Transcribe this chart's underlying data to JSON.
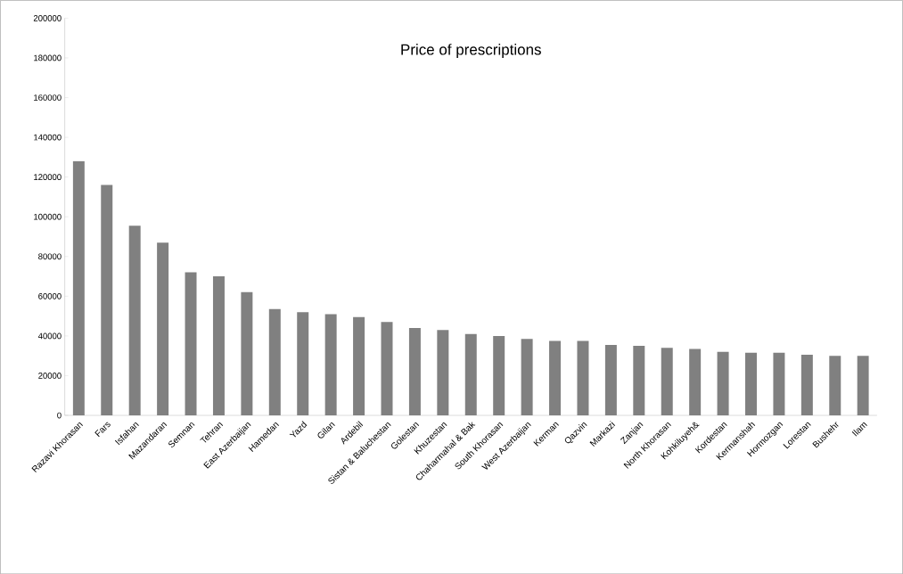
{
  "chart_data": {
    "type": "bar",
    "title": "Price of prescriptions",
    "categories": [
      "Razavi Khorasan",
      "Fars",
      "Isfahan",
      "Mazandaran",
      "Semnan",
      "Tehran",
      "East Azerbaijan",
      "Hamedan",
      "Yazd",
      "Gilan",
      "Ardebil",
      "Sistan & Baluchestan",
      "Golestan",
      "Khuzestan",
      "Chaharmahal & Bak",
      "South Khorasan",
      "West Azerbaijan",
      "Kerman",
      "Qazvin",
      "Markazi",
      "Zanjan",
      "North Khorasan",
      "Kohkiluyeh&",
      "Kordestan",
      "Kermanshah",
      "Hormozgan",
      "Lorestan",
      "Bushehr",
      "Ilam"
    ],
    "values": [
      128000,
      116000,
      95500,
      87000,
      72000,
      70000,
      62000,
      53500,
      52000,
      51000,
      49500,
      47000,
      44000,
      43000,
      41000,
      40000,
      38500,
      37500,
      37500,
      35500,
      35000,
      34000,
      33500,
      32000,
      31500,
      31500,
      30500,
      30000,
      30000
    ],
    "color": "#808080",
    "ylim": [
      0,
      200000
    ],
    "yticks": [
      0,
      20000,
      40000,
      60000,
      80000,
      100000,
      120000,
      140000,
      160000,
      180000,
      200000
    ],
    "grid": false
  }
}
